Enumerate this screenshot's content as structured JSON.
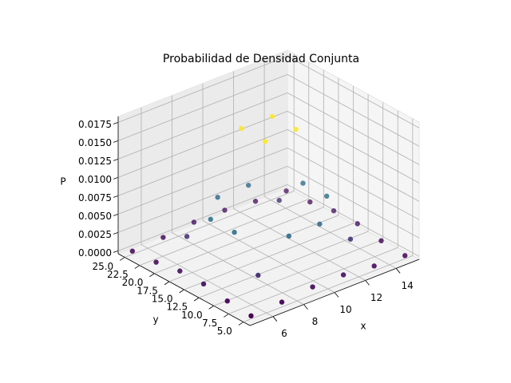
{
  "chart_data": {
    "type": "scatter3d",
    "title": "Probabilidad de Densidad Conjunta",
    "x_label": "x",
    "y_label": "y",
    "z_label": "P",
    "colormap": "viridis",
    "grid": true,
    "x": [
      5,
      5,
      5,
      5,
      5,
      5,
      7,
      7,
      7,
      7,
      7,
      7,
      9,
      9,
      9,
      9,
      9,
      9,
      11,
      11,
      11,
      11,
      11,
      11,
      13,
      13,
      13,
      13,
      13,
      13,
      15,
      15,
      15,
      15,
      15,
      15
    ],
    "y": [
      5,
      9,
      13,
      17,
      21,
      25,
      5,
      9,
      13,
      17,
      21,
      25,
      5,
      9,
      13,
      17,
      21,
      25,
      5,
      9,
      13,
      17,
      21,
      25,
      5,
      9,
      13,
      17,
      21,
      25,
      5,
      9,
      13,
      17,
      21,
      25
    ],
    "z": [
      3e-05,
      0.00029,
      0.00085,
      0.00085,
      0.00029,
      3e-05,
      0.00026,
      0.00215,
      0.00625,
      0.00625,
      0.00215,
      0.00026,
      0.00069,
      0.00585,
      0.01699,
      0.01699,
      0.00585,
      0.00069,
      0.00069,
      0.00585,
      0.01699,
      0.01699,
      0.00585,
      0.00069,
      0.00026,
      0.00215,
      0.00625,
      0.00625,
      0.00215,
      0.00026,
      3e-05,
      0.00029,
      0.00085,
      0.00085,
      0.00029,
      3e-05
    ],
    "xlim": [
      4.5,
      15.5
    ],
    "xticks": [
      6,
      8,
      10,
      12,
      14
    ],
    "ylim": [
      3.9,
      26.1
    ],
    "yticks": [
      {
        "value": 5,
        "label": "5.0"
      },
      {
        "value": 7.5,
        "label": "7.5"
      },
      {
        "value": 10,
        "label": "10.0"
      },
      {
        "value": 12.5,
        "label": "12.5"
      },
      {
        "value": 15,
        "label": "15.0"
      },
      {
        "value": 17.5,
        "label": "17.5"
      },
      {
        "value": 20,
        "label": "20.0"
      },
      {
        "value": 22.5,
        "label": "22.5"
      },
      {
        "value": 25,
        "label": "25.0"
      }
    ],
    "zlim": [
      -0.0004,
      0.0183
    ],
    "zticks": [
      {
        "value": 0,
        "label": "0.0000"
      },
      {
        "value": 0.0025,
        "label": "0.0025"
      },
      {
        "value": 0.005,
        "label": "0.0050"
      },
      {
        "value": 0.0075,
        "label": "0.0075"
      },
      {
        "value": 0.01,
        "label": "0.0100"
      },
      {
        "value": 0.0125,
        "label": "0.0125"
      },
      {
        "value": 0.015,
        "label": "0.0150"
      },
      {
        "value": 0.0175,
        "label": "0.0175"
      }
    ]
  }
}
